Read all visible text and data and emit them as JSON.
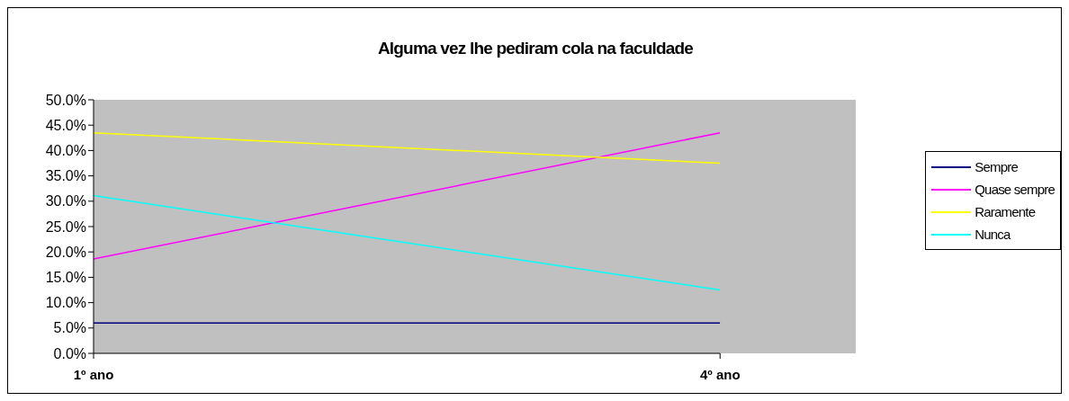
{
  "chart_data": {
    "type": "line",
    "title": "Alguma vez lhe pediram cola na faculdade",
    "categories": [
      "1º ano",
      "4º ano"
    ],
    "series": [
      {
        "name": "Sempre",
        "color": "#000080",
        "values": [
          6.0,
          6.0
        ]
      },
      {
        "name": "Quase sempre",
        "color": "#ff00ff",
        "values": [
          18.6,
          43.5
        ]
      },
      {
        "name": "Raramente",
        "color": "#ffff00",
        "values": [
          43.5,
          37.5
        ]
      },
      {
        "name": "Nunca",
        "color": "#00ffff",
        "values": [
          31.1,
          12.5
        ]
      }
    ],
    "ylim": [
      0,
      50
    ],
    "yticks": [
      {
        "value": 0,
        "label": "0.0%"
      },
      {
        "value": 5,
        "label": "5.0%"
      },
      {
        "value": 10,
        "label": "10.0%"
      },
      {
        "value": 15,
        "label": "15.0%"
      },
      {
        "value": 20,
        "label": "20.0%"
      },
      {
        "value": 25,
        "label": "25.0%"
      },
      {
        "value": 30,
        "label": "30.0%"
      },
      {
        "value": 35,
        "label": "35.0%"
      },
      {
        "value": 40,
        "label": "40.0%"
      },
      {
        "value": 45,
        "label": "45.0%"
      },
      {
        "value": 50,
        "label": "50.0%"
      }
    ],
    "grid": false,
    "legend": "right",
    "marker": "none",
    "line_style": "solid"
  }
}
